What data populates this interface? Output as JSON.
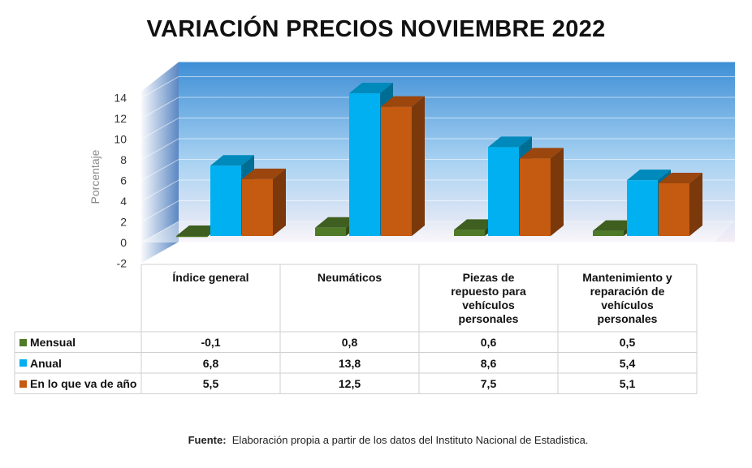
{
  "chart_data": {
    "type": "bar",
    "title": "VARIACIÓN PRECIOS NOVIEMBRE 2022",
    "ylabel": "Porcentaje",
    "ylim": [
      -2,
      14
    ],
    "yticks": [
      "14",
      "12",
      "10",
      "8",
      "6",
      "4",
      "2",
      "0",
      "-2"
    ],
    "categories": [
      "Índice general",
      "Neumáticos",
      "Piezas de repuesto para vehículos personales",
      "Mantenimiento y reparación de vehículos personales"
    ],
    "category_lines": [
      [
        "Índice general"
      ],
      [
        "Neumáticos"
      ],
      [
        "Piezas de",
        "repuesto para",
        "vehículos",
        "personales"
      ],
      [
        "Mantenimiento y",
        "reparación de",
        "vehículos",
        "personales"
      ]
    ],
    "series": [
      {
        "name": "Mensual",
        "color": "#4f7a28",
        "values": [
          -0.1,
          0.8,
          0.6,
          0.5
        ],
        "labels": [
          "-0,1",
          "0,8",
          "0,6",
          "0,5"
        ]
      },
      {
        "name": "Anual",
        "color": "#00b0f0",
        "values": [
          6.8,
          13.8,
          8.6,
          5.4
        ],
        "labels": [
          "6,8",
          "13,8",
          "8,6",
          "5,4"
        ]
      },
      {
        "name": "En lo que va de año",
        "color": "#c55a11",
        "values": [
          5.5,
          12.5,
          7.5,
          5.1
        ],
        "labels": [
          "5,5",
          "12,5",
          "7,5",
          "5,1"
        ]
      }
    ],
    "grid": true,
    "legend": "data table"
  },
  "source": {
    "label": "Fuente:",
    "text": "Elaboración propia a partir de los datos del Instituto Nacional de Estadistica."
  }
}
